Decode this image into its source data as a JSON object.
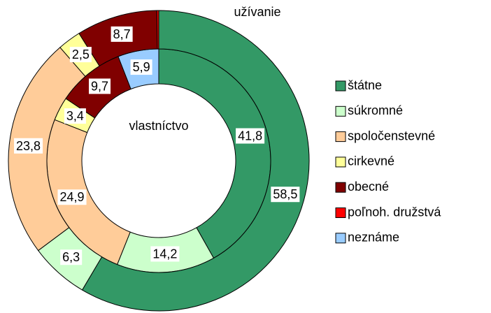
{
  "chart_data": {
    "type": "donut",
    "categories": [
      "štátne",
      "súkromné",
      "spoločenstevné",
      "cirkevné",
      "obecné",
      "poľnoh. družstvá",
      "neznáme"
    ],
    "colors": [
      "#339966",
      "#ccffcc",
      "#ffcc99",
      "#ffff99",
      "#800000",
      "#ff0000",
      "#99ccff"
    ],
    "series": [
      {
        "name": "vlastníctvo",
        "values": [
          41.8,
          14.2,
          24.9,
          3.4,
          9.7,
          0,
          5.9
        ],
        "value_labels": [
          "41,8",
          "14,2",
          "24,9",
          "3,4",
          "9,7",
          null,
          "5,9"
        ]
      },
      {
        "name": "užívanie",
        "values": [
          58.5,
          6.3,
          23.8,
          2.5,
          8.7,
          0.2,
          0
        ],
        "value_labels": [
          "58,5",
          "6,3",
          "23,8",
          "2,5",
          "8,7",
          null,
          null
        ]
      }
    ],
    "legend": "right"
  }
}
